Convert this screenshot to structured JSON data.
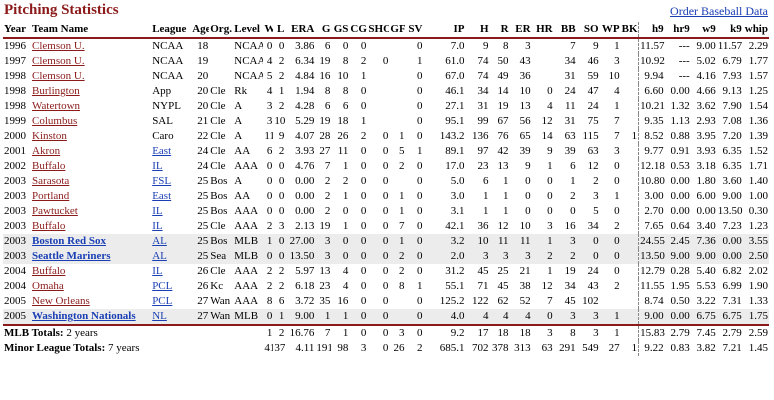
{
  "header": {
    "title": "Pitching Statistics",
    "link": "Order Baseball Data"
  },
  "table": {
    "columns": [
      "Year",
      "Team Name",
      "League",
      "Age",
      "Org.",
      "Level",
      "W",
      "L",
      "ERA",
      "G",
      "GS",
      "CG",
      "SHO",
      "GF",
      "SV",
      "IP",
      "H",
      "R",
      "ER",
      "HR",
      "BB",
      "SO",
      "WP",
      "BK",
      "h9",
      "hr9",
      "w9",
      "k9",
      "whip"
    ],
    "rows": [
      [
        "1996",
        "Clemson U.",
        "NCAA",
        "18",
        null,
        "NCAA",
        "0",
        "0",
        "3.86",
        "6",
        "0",
        "0",
        null,
        null,
        "0",
        "7.0",
        "9",
        "8",
        "3",
        null,
        "7",
        "9",
        "1",
        null,
        "11.57",
        "---",
        "9.00",
        "11.57",
        "2.29"
      ],
      [
        "1997",
        "Clemson U.",
        "NCAA",
        "19",
        null,
        "NCAA",
        "4",
        "2",
        "6.34",
        "19",
        "8",
        "2",
        "0",
        null,
        "1",
        "61.0",
        "74",
        "50",
        "43",
        null,
        "34",
        "46",
        "3",
        null,
        "10.92",
        "---",
        "5.02",
        "6.79",
        "1.77"
      ],
      [
        "1998",
        "Clemson U.",
        "NCAA",
        "20",
        null,
        "NCAA",
        "5",
        "2",
        "4.84",
        "16",
        "10",
        "1",
        null,
        null,
        "0",
        "67.0",
        "74",
        "49",
        "36",
        null,
        "31",
        "59",
        "10",
        null,
        "9.94",
        "---",
        "4.16",
        "7.93",
        "1.57"
      ],
      [
        "1998",
        "Burlington",
        "App",
        "20",
        "Cle",
        "Rk",
        "4",
        "1",
        "1.94",
        "8",
        "8",
        "0",
        null,
        null,
        "0",
        "46.1",
        "34",
        "14",
        "10",
        "0",
        "24",
        "47",
        "4",
        null,
        "6.60",
        "0.00",
        "4.66",
        "9.13",
        "1.25"
      ],
      [
        "1998",
        "Watertown",
        "NYPL",
        "20",
        "Cle",
        "A",
        "3",
        "2",
        "4.28",
        "6",
        "6",
        "0",
        null,
        null,
        "0",
        "27.1",
        "31",
        "19",
        "13",
        "4",
        "11",
        "24",
        "1",
        null,
        "10.21",
        "1.32",
        "3.62",
        "7.90",
        "1.54"
      ],
      [
        "1999",
        "Columbus",
        "SAL",
        "21",
        "Cle",
        "A",
        "3",
        "10",
        "5.29",
        "19",
        "18",
        "1",
        null,
        null,
        "0",
        "95.1",
        "99",
        "67",
        "56",
        "12",
        "31",
        "75",
        "7",
        null,
        "9.35",
        "1.13",
        "2.93",
        "7.08",
        "1.36"
      ],
      [
        "2000",
        "Kinston",
        "Caro",
        "22",
        "Cle",
        "A",
        "11",
        "9",
        "4.07",
        "28",
        "26",
        "2",
        "0",
        "1",
        "0",
        "143.2",
        "136",
        "76",
        "65",
        "14",
        "63",
        "115",
        "7",
        "1",
        "8.52",
        "0.88",
        "3.95",
        "7.20",
        "1.39"
      ],
      [
        "2001",
        "Akron",
        "East",
        "24",
        "Cle",
        "AA",
        "6",
        "2",
        "3.93",
        "27",
        "11",
        "0",
        "0",
        "5",
        "1",
        "89.1",
        "97",
        "42",
        "39",
        "9",
        "39",
        "63",
        "3",
        null,
        "9.77",
        "0.91",
        "3.93",
        "6.35",
        "1.52"
      ],
      [
        "2002",
        "Buffalo",
        "IL",
        "24",
        "Cle",
        "AAA",
        "0",
        "0",
        "4.76",
        "7",
        "1",
        "0",
        "0",
        "2",
        "0",
        "17.0",
        "23",
        "13",
        "9",
        "1",
        "6",
        "12",
        "0",
        null,
        "12.18",
        "0.53",
        "3.18",
        "6.35",
        "1.71"
      ],
      [
        "2003",
        "Sarasota",
        "FSL",
        "25",
        "Bos",
        "A",
        "0",
        "0",
        "0.00",
        "2",
        "2",
        "0",
        "0",
        null,
        "0",
        "5.0",
        "6",
        "1",
        "0",
        "0",
        "1",
        "2",
        "0",
        null,
        "10.80",
        "0.00",
        "1.80",
        "3.60",
        "1.40"
      ],
      [
        "2003",
        "Portland",
        "East",
        "25",
        "Bos",
        "AA",
        "0",
        "0",
        "0.00",
        "2",
        "1",
        "0",
        "0",
        "1",
        "0",
        "3.0",
        "1",
        "1",
        "0",
        "0",
        "2",
        "3",
        "1",
        null,
        "3.00",
        "0.00",
        "6.00",
        "9.00",
        "1.00"
      ],
      [
        "2003",
        "Pawtucket",
        "IL",
        "25",
        "Bos",
        "AAA",
        "0",
        "0",
        "0.00",
        "2",
        "0",
        "0",
        "0",
        "1",
        "0",
        "3.1",
        "1",
        "1",
        "0",
        "0",
        "0",
        "5",
        "0",
        null,
        "2.70",
        "0.00",
        "0.00",
        "13.50",
        "0.30"
      ],
      [
        "2003",
        "Buffalo",
        "IL",
        "25",
        "Cle",
        "AAA",
        "2",
        "3",
        "2.13",
        "19",
        "1",
        "0",
        "0",
        "7",
        "0",
        "42.1",
        "36",
        "12",
        "10",
        "3",
        "16",
        "34",
        "2",
        null,
        "7.65",
        "0.64",
        "3.40",
        "7.23",
        "1.23"
      ],
      [
        "2003",
        "Boston Red Sox",
        "AL",
        "25",
        "Bos",
        "MLB",
        "1",
        "0",
        "27.00",
        "3",
        "0",
        "0",
        "0",
        "1",
        "0",
        "3.2",
        "10",
        "11",
        "11",
        "1",
        "3",
        "0",
        "0",
        null,
        "24.55",
        "2.45",
        "7.36",
        "0.00",
        "3.55"
      ],
      [
        "2003",
        "Seattle Mariners",
        "AL",
        "25",
        "Sea",
        "MLB",
        "0",
        "0",
        "13.50",
        "3",
        "0",
        "0",
        "0",
        "2",
        "0",
        "2.0",
        "3",
        "3",
        "3",
        "2",
        "2",
        "0",
        "0",
        null,
        "13.50",
        "9.00",
        "9.00",
        "0.00",
        "2.50"
      ],
      [
        "2004",
        "Buffalo",
        "IL",
        "26",
        "Cle",
        "AAA",
        "2",
        "2",
        "5.97",
        "13",
        "4",
        "0",
        "0",
        "2",
        "0",
        "31.2",
        "45",
        "25",
        "21",
        "1",
        "19",
        "24",
        "0",
        null,
        "12.79",
        "0.28",
        "5.40",
        "6.82",
        "2.02"
      ],
      [
        "2004",
        "Omaha",
        "PCL",
        "26",
        "Kc",
        "AAA",
        "2",
        "2",
        "6.18",
        "23",
        "4",
        "0",
        "0",
        "8",
        "1",
        "55.1",
        "71",
        "45",
        "38",
        "12",
        "34",
        "43",
        "2",
        null,
        "11.55",
        "1.95",
        "5.53",
        "6.99",
        "1.90"
      ],
      [
        "2005",
        "New Orleans",
        "PCL",
        "27",
        "Wan",
        "AAA",
        "8",
        "6",
        "3.72",
        "35",
        "16",
        "0",
        "0",
        null,
        "0",
        "125.2",
        "122",
        "62",
        "52",
        "7",
        "45",
        "102",
        null,
        null,
        "8.74",
        "0.50",
        "3.22",
        "7.31",
        "1.33"
      ],
      [
        "2005",
        "Washington Nationals",
        "NL",
        "27",
        "Wan",
        "MLB",
        "0",
        "1",
        "9.00",
        "1",
        "1",
        "0",
        "0",
        null,
        "0",
        "4.0",
        "4",
        "4",
        "4",
        "0",
        "3",
        "3",
        "1",
        null,
        "9.00",
        "0.00",
        "6.75",
        "6.75",
        "1.75"
      ]
    ],
    "totals": [
      {
        "label": "MLB Totals:",
        "note": "2 years",
        "stats": [
          "1",
          "2",
          "16.76",
          "7",
          "1",
          "0",
          "0",
          "3",
          "0",
          "9.2",
          "17",
          "18",
          "18",
          "3",
          "8",
          "3",
          "1",
          null,
          "15.83",
          "2.79",
          "7.45",
          "2.79",
          "2.59"
        ]
      },
      {
        "label": "Minor League Totals:",
        "note": "7 years",
        "stats": [
          "41",
          "37",
          "4.11",
          "191",
          "98",
          "3",
          "0",
          "26",
          "2",
          "685.1",
          "702",
          "378",
          "313",
          "63",
          "291",
          "549",
          "27",
          "1",
          "9.22",
          "0.83",
          "3.82",
          "7.21",
          "1.45"
        ]
      }
    ]
  }
}
